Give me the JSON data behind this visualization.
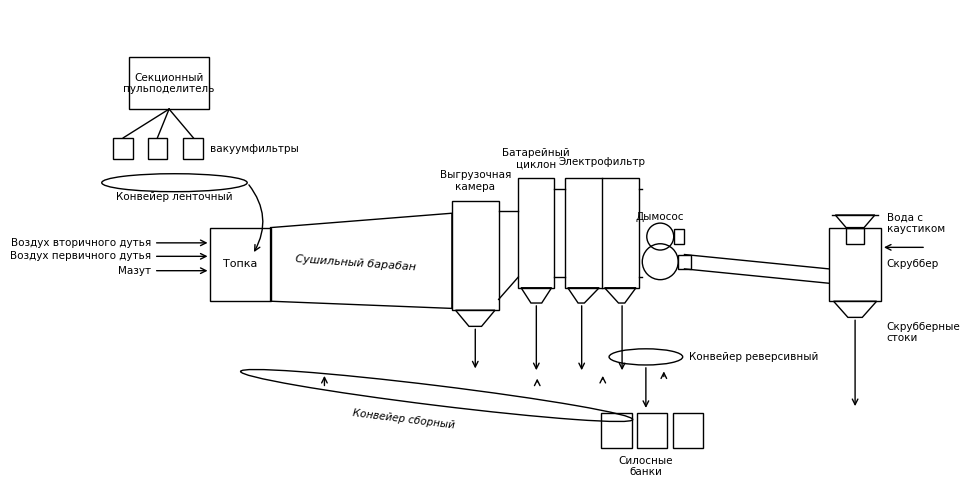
{
  "bg_color": "#ffffff",
  "line_color": "#000000",
  "text_color": "#000000",
  "figsize": [
    9.64,
    5.01
  ],
  "dpi": 100,
  "labels": {
    "sektsionny": "Секционный\nпульподелитель",
    "vakuumfiltry": "вакуумфильтры",
    "konveyer_lentochny": "Конвейер ленточный",
    "vozdukh_vtorichnogo": "Воздух вторичного дутья",
    "vozdukh_pervichnogo": "Воздух первичного дутья",
    "mazut": "Мазут",
    "topka": "Топка",
    "sushilny": "Сушильный барабан",
    "vygruzochnaya": "Выгрузочная\nкамера",
    "batarejny": "Батарейный\nциклон",
    "elektrofiltr": "Электрофильтр",
    "dymosos": "Дымосос",
    "voda_s_kaustikom": "Вода с\nкаустиком",
    "skrubber": "Скруббер",
    "skrubberny_stoki": "Скрубберные\nстоки",
    "konveyer_sborny": "Конвейер сборный",
    "konveyer_reversivny": "Конвейер реверсивный",
    "silosny_banki": "Силосные\nбанки"
  }
}
